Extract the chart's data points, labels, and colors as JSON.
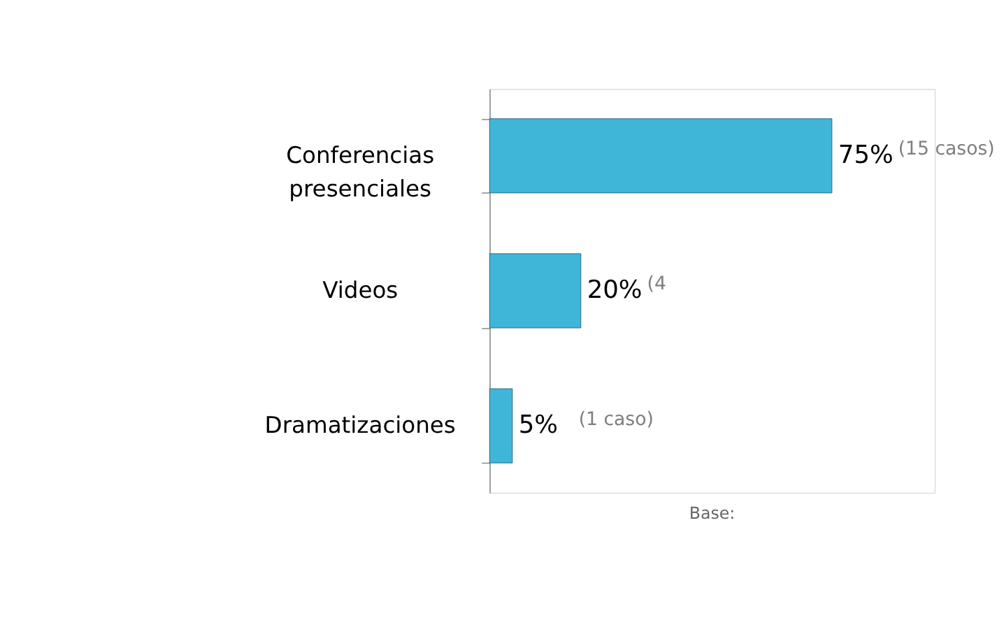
{
  "chart_data": {
    "type": "bar",
    "orientation": "horizontal",
    "categories": [
      "Conferencias presenciales",
      "Videos",
      "Dramatizaciones"
    ],
    "values": [
      75,
      20,
      5
    ],
    "value_labels": [
      "75%",
      "20%",
      "5%"
    ],
    "color": "#3fb6d8",
    "annotations": [
      "(15 casos)",
      "(4",
      "(1 caso)",
      "Base:"
    ]
  }
}
